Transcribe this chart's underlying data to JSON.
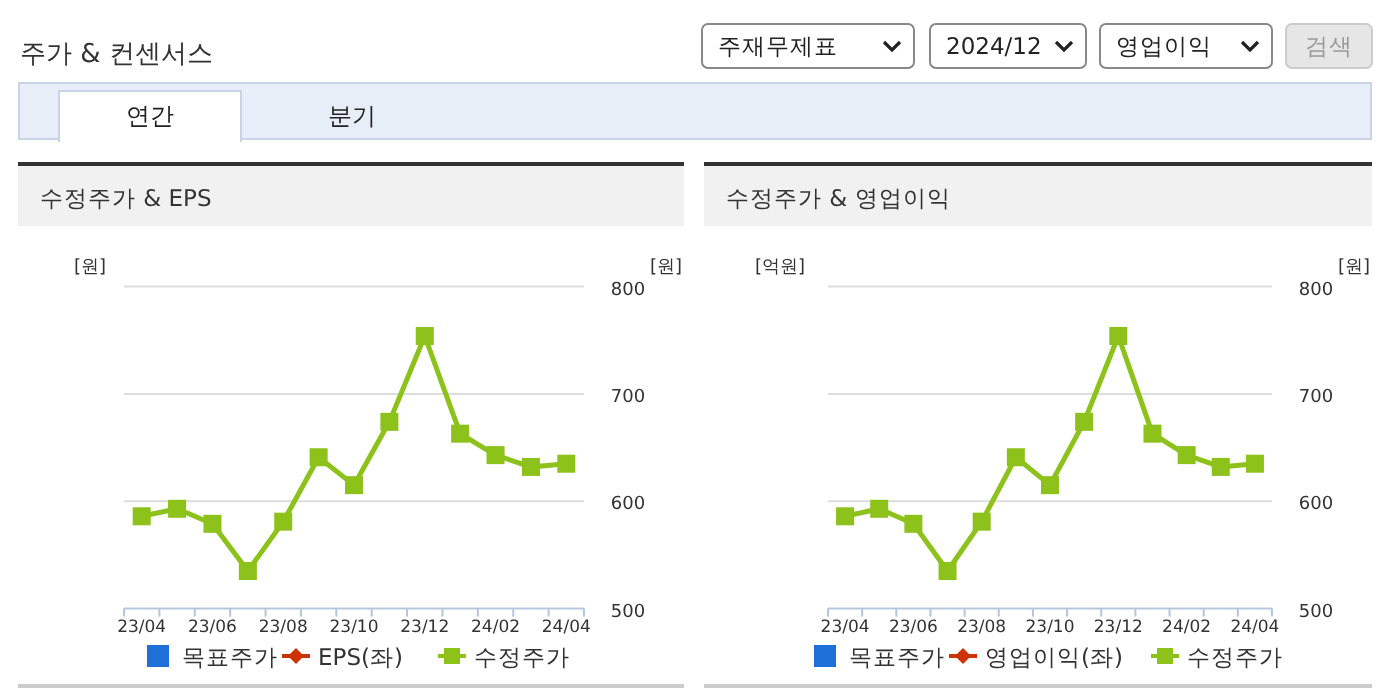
{
  "chart_data": [
    {
      "type": "line",
      "title": "수정주가 & EPS",
      "ylabel": "[원]",
      "y2label": "[원]",
      "annotations": [
        "주가 & 컨센서스",
        "주재무제표",
        "2024/12",
        "영업이익",
        "검색",
        "연간",
        "분기"
      ],
      "categories": [
        "23/04",
        null,
        "23/06",
        null,
        "23/08",
        null,
        "23/10",
        null,
        "23/12",
        null,
        "24/02",
        null,
        "24/04"
      ],
      "y2lim": [
        500,
        800
      ],
      "y2ticks": [
        500,
        600,
        700,
        800
      ],
      "grid": "y",
      "legend": "bottom",
      "series": [
        {
          "name": "목표주가",
          "color": "#1f6fd8",
          "marker": "square",
          "values": [
            null,
            null,
            null,
            null,
            null,
            null,
            null,
            null,
            null,
            null,
            null,
            null,
            null
          ]
        },
        {
          "name": "EPS(좌)",
          "color": "#cc3300",
          "marker": "diamond",
          "values": [
            null,
            null,
            null,
            null,
            null,
            null,
            null,
            null,
            null,
            null,
            null,
            null,
            null
          ]
        },
        {
          "name": "수정주가",
          "color": "#8cc21a",
          "marker": "square",
          "axis": "y2",
          "values": [
            586,
            593,
            579,
            535,
            581,
            641,
            615,
            674,
            754,
            663,
            643,
            632,
            635
          ]
        }
      ]
    },
    {
      "type": "line",
      "title": "수정주가 & 영업이익",
      "ylabel": "[억원]",
      "y2label": "[원]",
      "categories": [
        "23/04",
        null,
        "23/06",
        null,
        "23/08",
        null,
        "23/10",
        null,
        "23/12",
        null,
        "24/02",
        null,
        "24/04"
      ],
      "y2lim": [
        500,
        800
      ],
      "y2ticks": [
        500,
        600,
        700,
        800
      ],
      "grid": "y",
      "legend": "bottom",
      "series": [
        {
          "name": "목표주가",
          "color": "#1f6fd8",
          "marker": "square",
          "values": [
            null,
            null,
            null,
            null,
            null,
            null,
            null,
            null,
            null,
            null,
            null,
            null,
            null
          ]
        },
        {
          "name": "영업이익(좌)",
          "color": "#cc3300",
          "marker": "diamond",
          "values": [
            null,
            null,
            null,
            null,
            null,
            null,
            null,
            null,
            null,
            null,
            null,
            null,
            null
          ]
        },
        {
          "name": "수정주가",
          "color": "#8cc21a",
          "marker": "square",
          "axis": "y2",
          "values": [
            586,
            593,
            579,
            535,
            581,
            641,
            615,
            674,
            754,
            663,
            643,
            632,
            635
          ]
        }
      ]
    }
  ]
}
